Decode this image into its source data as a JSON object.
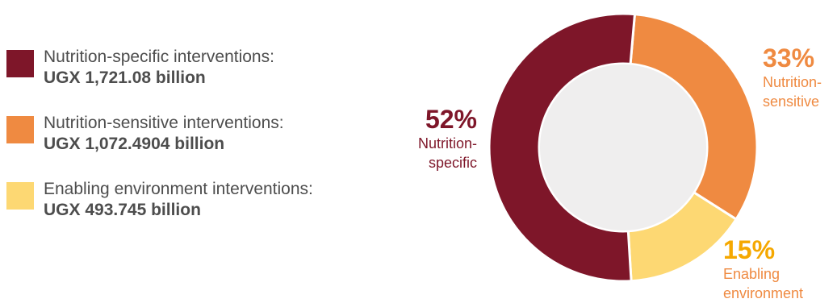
{
  "chart_data": {
    "type": "pie",
    "variant": "donut",
    "slices": [
      {
        "key": "specific",
        "label": "Nutrition-specific interventions:",
        "amount": "UGX 1,721.08 billion",
        "value": 1721.08,
        "percent": "52%",
        "short": [
          "Nutrition-",
          "specific"
        ],
        "color": "#7e1629",
        "text_color": "#7e1629",
        "label_color": "#7e1629"
      },
      {
        "key": "sensitive",
        "label": "Nutrition-sensitive interventions:",
        "amount": "UGX 1,072.4904 billion",
        "value": 1072.4904,
        "percent": "33%",
        "short": [
          "Nutrition-",
          "sensitive"
        ],
        "color": "#ef8a41",
        "text_color": "#ef8a41",
        "label_color": "#ef8a41"
      },
      {
        "key": "enabling",
        "label": "Enabling environment interventions:",
        "amount": "UGX 493.745 billion",
        "value": 493.745,
        "percent": "15%",
        "short": [
          "Enabling",
          "environment"
        ],
        "color": "#fdd873",
        "text_color": "#f5a800",
        "label_color": "#ef8a41"
      }
    ],
    "hole_color": "#efeeee",
    "start_angle_deg": 5
  }
}
